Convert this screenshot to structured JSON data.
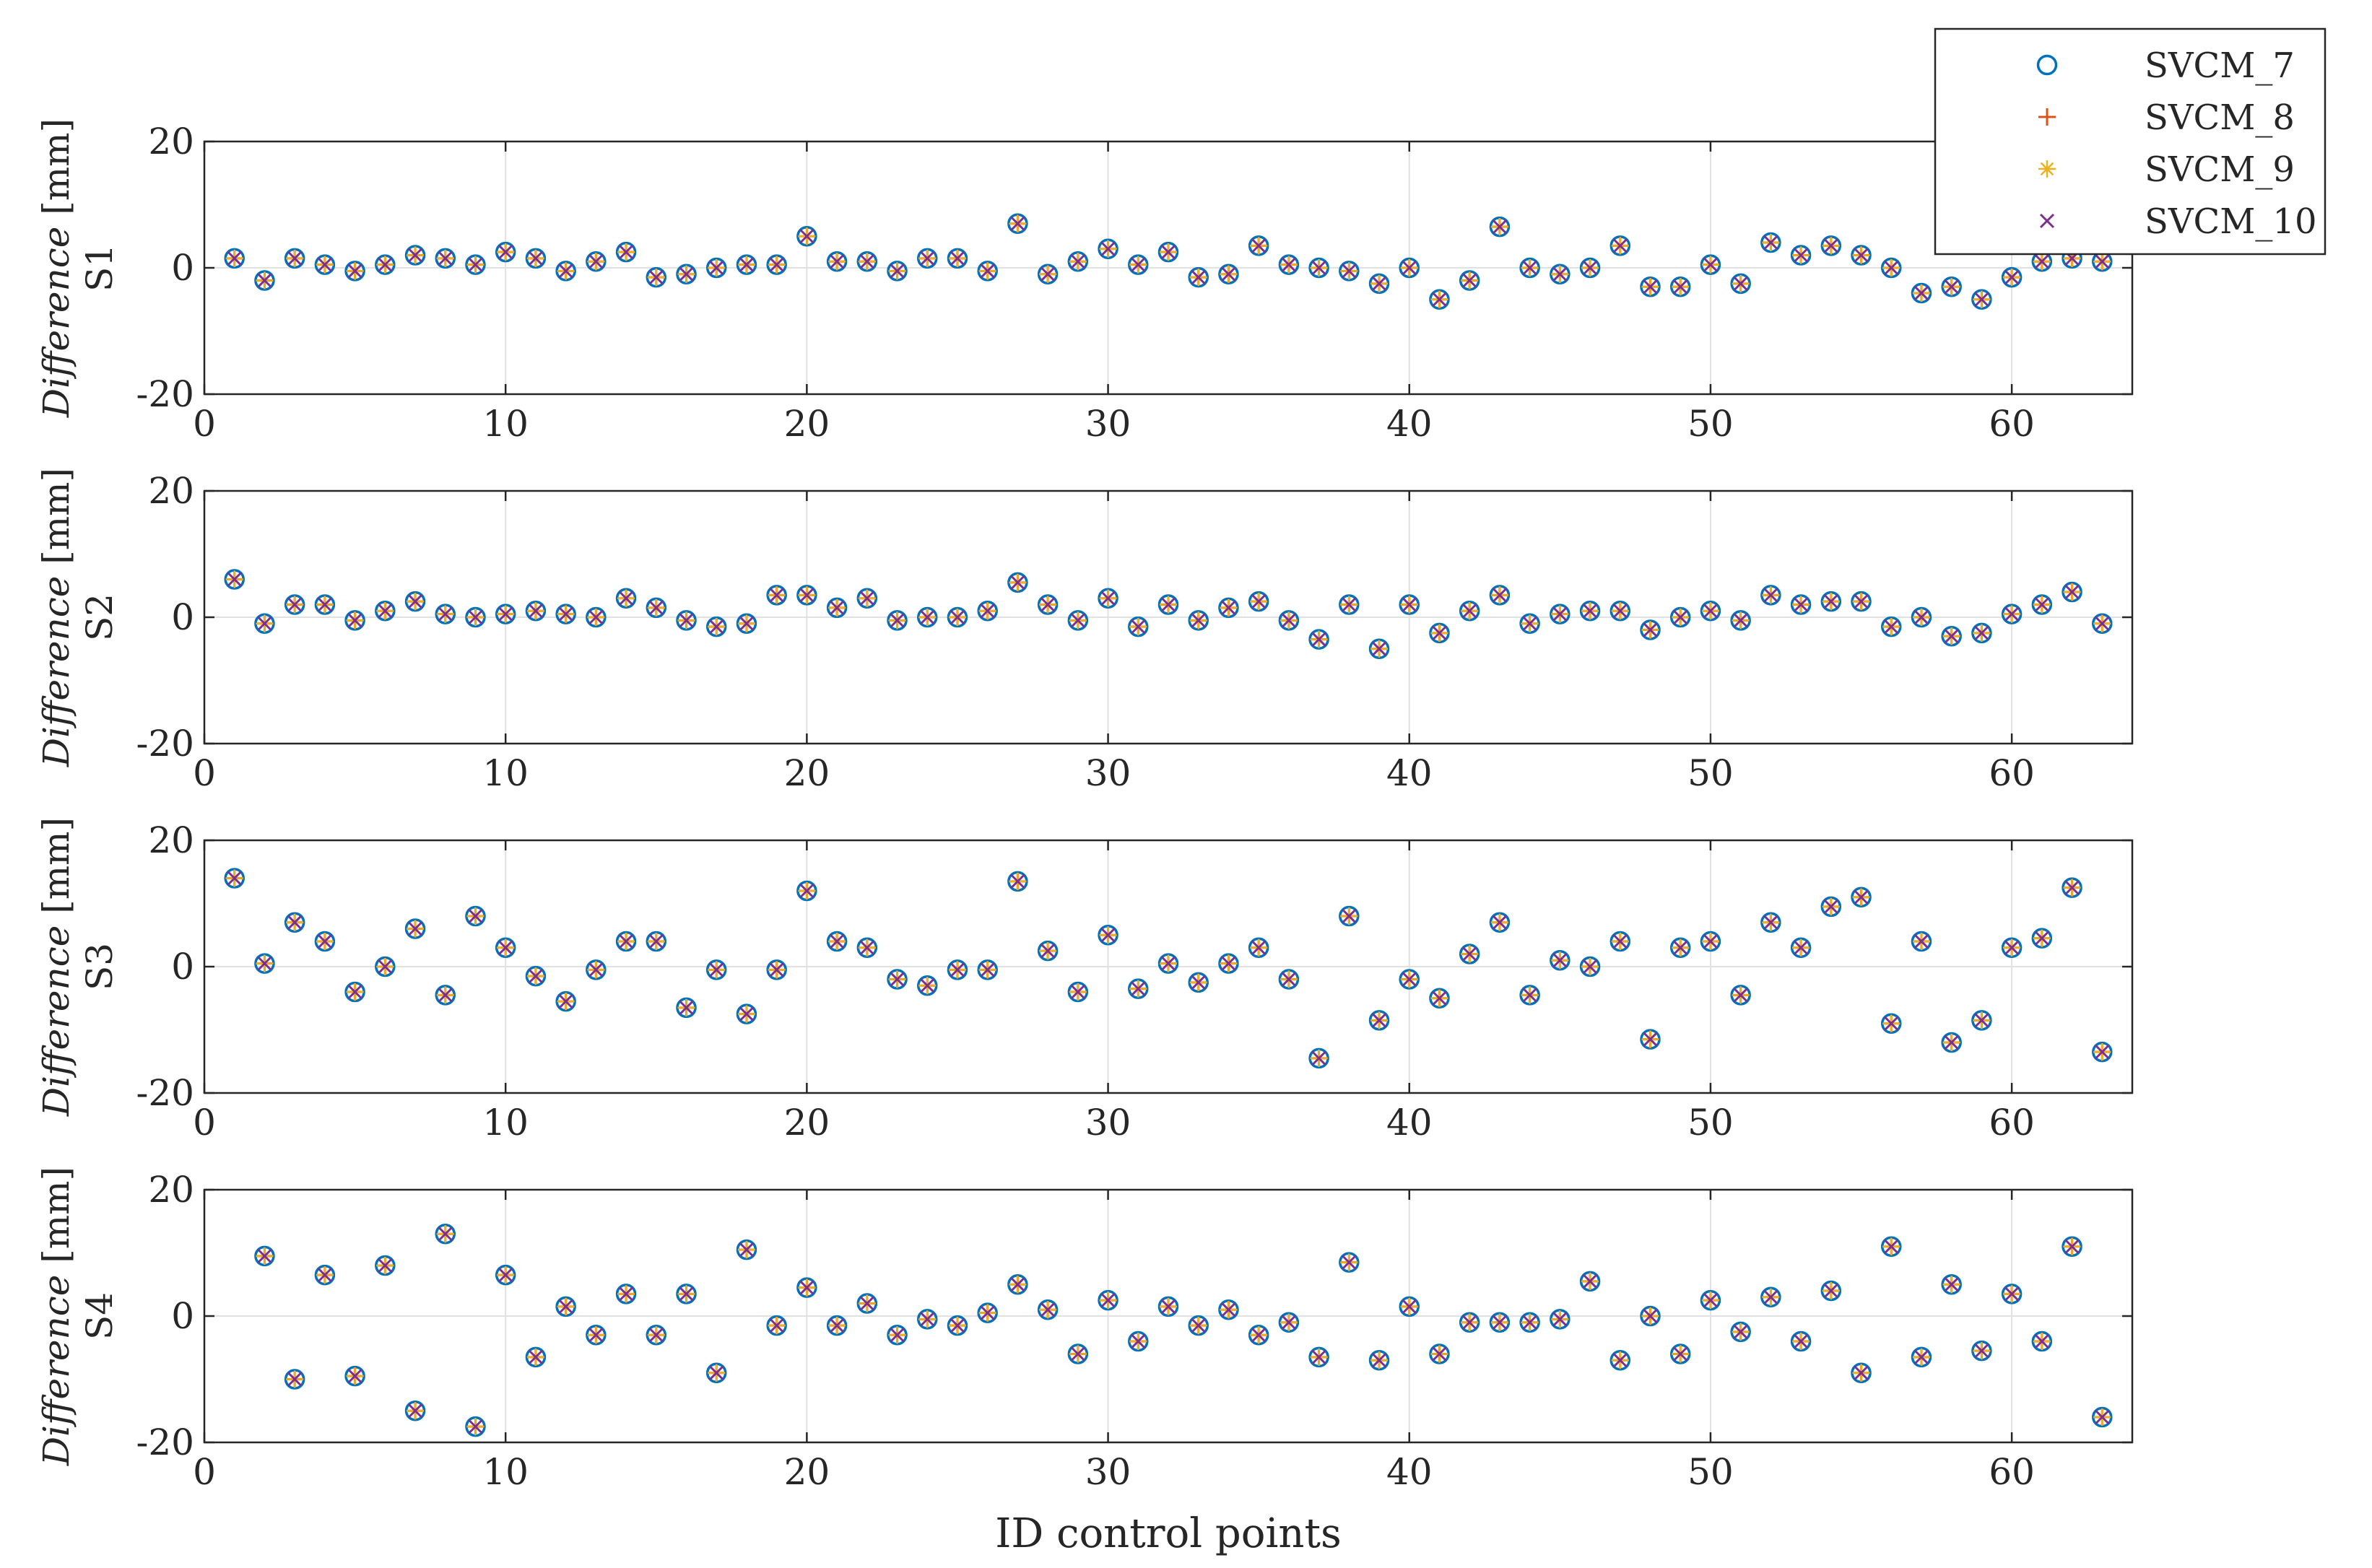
{
  "chart_data": [
    {
      "type": "scatter",
      "panel": "S1",
      "ylabel": "Difference [mm]",
      "xlim": [
        0,
        64
      ],
      "ylim": [
        -20,
        20
      ],
      "grid": true,
      "xticks": [
        0,
        10,
        20,
        30,
        40,
        50,
        60
      ],
      "yticks": [
        -20,
        0,
        20
      ],
      "x": [
        1,
        2,
        3,
        4,
        5,
        6,
        7,
        8,
        9,
        10,
        11,
        12,
        13,
        14,
        15,
        16,
        17,
        18,
        19,
        20,
        21,
        22,
        23,
        24,
        25,
        26,
        27,
        28,
        29,
        30,
        31,
        32,
        33,
        34,
        35,
        36,
        37,
        38,
        39,
        40,
        41,
        42,
        43,
        44,
        45,
        46,
        47,
        48,
        49,
        50,
        51,
        52,
        53,
        54,
        55,
        56,
        57,
        58,
        59,
        60,
        61,
        62,
        63
      ],
      "y": [
        1.5,
        -2,
        1.5,
        0.5,
        -0.5,
        0.5,
        2,
        1.5,
        0.5,
        2.5,
        1.5,
        -0.5,
        1,
        2.5,
        -1.5,
        -1,
        0,
        0.5,
        0.5,
        5,
        1,
        1,
        -0.5,
        1.5,
        1.5,
        -0.5,
        7,
        -1,
        1,
        3,
        0.5,
        2.5,
        -1.5,
        -1,
        3.5,
        0.5,
        0,
        -0.5,
        -2.5,
        0,
        -5,
        -2,
        6.5,
        0,
        -1,
        0,
        3.5,
        -3,
        -3,
        0.5,
        -2.5,
        4,
        2,
        3.5,
        2,
        0,
        -4,
        -3,
        -5,
        -1.5,
        1,
        1.5,
        1
      ]
    },
    {
      "type": "scatter",
      "panel": "S2",
      "ylabel": "Difference [mm]",
      "xlim": [
        0,
        64
      ],
      "ylim": [
        -20,
        20
      ],
      "grid": true,
      "xticks": [
        0,
        10,
        20,
        30,
        40,
        50,
        60
      ],
      "yticks": [
        -20,
        0,
        20
      ],
      "x": [
        1,
        2,
        3,
        4,
        5,
        6,
        7,
        8,
        9,
        10,
        11,
        12,
        13,
        14,
        15,
        16,
        17,
        18,
        19,
        20,
        21,
        22,
        23,
        24,
        25,
        26,
        27,
        28,
        29,
        30,
        31,
        32,
        33,
        34,
        35,
        36,
        37,
        38,
        39,
        40,
        41,
        42,
        43,
        44,
        45,
        46,
        47,
        48,
        49,
        50,
        51,
        52,
        53,
        54,
        55,
        56,
        57,
        58,
        59,
        60,
        61,
        62,
        63
      ],
      "y": [
        6,
        -1,
        2,
        2,
        -0.5,
        1,
        2.5,
        0.5,
        0,
        0.5,
        1,
        0.5,
        0,
        3,
        1.5,
        -0.5,
        -1.5,
        -1,
        3.5,
        3.5,
        1.5,
        3,
        -0.5,
        0,
        0,
        1,
        5.5,
        2,
        -0.5,
        3,
        -1.5,
        2,
        -0.5,
        1.5,
        2.5,
        -0.5,
        -3.5,
        2,
        -5,
        2,
        -2.5,
        1,
        3.5,
        -1,
        0.5,
        1,
        1,
        -2,
        0,
        1,
        -0.5,
        3.5,
        2,
        2.5,
        2.5,
        -1.5,
        0,
        -3,
        -2.5,
        0.5,
        2,
        4,
        -1
      ]
    },
    {
      "type": "scatter",
      "panel": "S3",
      "ylabel": "Difference [mm]",
      "xlim": [
        0,
        64
      ],
      "ylim": [
        -20,
        20
      ],
      "grid": true,
      "xticks": [
        0,
        10,
        20,
        30,
        40,
        50,
        60
      ],
      "yticks": [
        -20,
        0,
        20
      ],
      "x": [
        1,
        2,
        3,
        4,
        5,
        6,
        7,
        8,
        9,
        10,
        11,
        12,
        13,
        14,
        15,
        16,
        17,
        18,
        19,
        20,
        21,
        22,
        23,
        24,
        25,
        26,
        27,
        28,
        29,
        30,
        31,
        32,
        33,
        34,
        35,
        36,
        37,
        38,
        39,
        40,
        41,
        42,
        43,
        44,
        45,
        46,
        47,
        48,
        49,
        50,
        51,
        52,
        53,
        54,
        55,
        56,
        57,
        58,
        59,
        60,
        61,
        62,
        63
      ],
      "y": [
        14,
        0.5,
        7,
        4,
        -4,
        0,
        6,
        -4.5,
        8,
        3,
        -1.5,
        -5.5,
        -0.5,
        4,
        4,
        -6.5,
        -0.5,
        -7.5,
        -0.5,
        12,
        4,
        3,
        -2,
        -3,
        -0.5,
        -0.5,
        13.5,
        2.5,
        -4,
        5,
        -3.5,
        0.5,
        -2.5,
        0.5,
        3,
        -2,
        -14.5,
        8,
        -8.5,
        -2,
        -5,
        2,
        7,
        -4.5,
        1,
        0,
        4,
        -11.5,
        3,
        4,
        -4.5,
        7,
        3,
        9.5,
        11,
        -9,
        4,
        -12,
        -8.5,
        3,
        4.5,
        12.5,
        -13.5
      ]
    },
    {
      "type": "scatter",
      "panel": "S4",
      "ylabel": "Difference [mm]",
      "xlabel": "ID control points",
      "xlim": [
        0,
        64
      ],
      "ylim": [
        -20,
        20
      ],
      "grid": true,
      "xticks": [
        0,
        10,
        20,
        30,
        40,
        50,
        60
      ],
      "yticks": [
        -20,
        0,
        20
      ],
      "x": [
        2,
        3,
        4,
        5,
        6,
        7,
        8,
        9,
        10,
        11,
        12,
        13,
        14,
        15,
        16,
        17,
        18,
        19,
        20,
        21,
        22,
        23,
        24,
        25,
        26,
        27,
        28,
        29,
        30,
        31,
        32,
        33,
        34,
        35,
        36,
        37,
        38,
        39,
        40,
        41,
        42,
        43,
        44,
        45,
        46,
        47,
        48,
        49,
        50,
        51,
        52,
        53,
        54,
        55,
        56,
        57,
        58,
        59,
        60,
        61,
        62,
        63
      ],
      "y": [
        9.5,
        -10,
        6.5,
        -9.5,
        8,
        -15,
        13,
        -17.5,
        6.5,
        -6.5,
        1.5,
        -3,
        3.5,
        -3,
        3.5,
        -9,
        10.5,
        -1.5,
        4.5,
        -1.5,
        2,
        -3,
        -0.5,
        -1.5,
        0.5,
        5,
        1,
        -6,
        2.5,
        -4,
        1.5,
        -1.5,
        1,
        -3,
        -1,
        -6.5,
        8.5,
        -7,
        1.5,
        -6,
        -1,
        -1,
        -1,
        -0.5,
        5.5,
        -7,
        0,
        -6,
        2.5,
        -2.5,
        3,
        -4,
        4,
        -9,
        11,
        -6.5,
        5,
        -5.5,
        3.5,
        -4,
        11,
        -16
      ]
    }
  ],
  "legend": {
    "position": "top-right",
    "entries": [
      {
        "label": "SVCM_7",
        "marker": "circle",
        "color": "#0072BD"
      },
      {
        "label": "SVCM_8",
        "marker": "plus",
        "color": "#D95319"
      },
      {
        "label": "SVCM_9",
        "marker": "asterisk",
        "color": "#EDB120"
      },
      {
        "label": "SVCM_10",
        "marker": "cross",
        "color": "#7E2F8E"
      }
    ]
  },
  "colors": {
    "axis": "#262626",
    "grid": "#e1e1e1"
  }
}
